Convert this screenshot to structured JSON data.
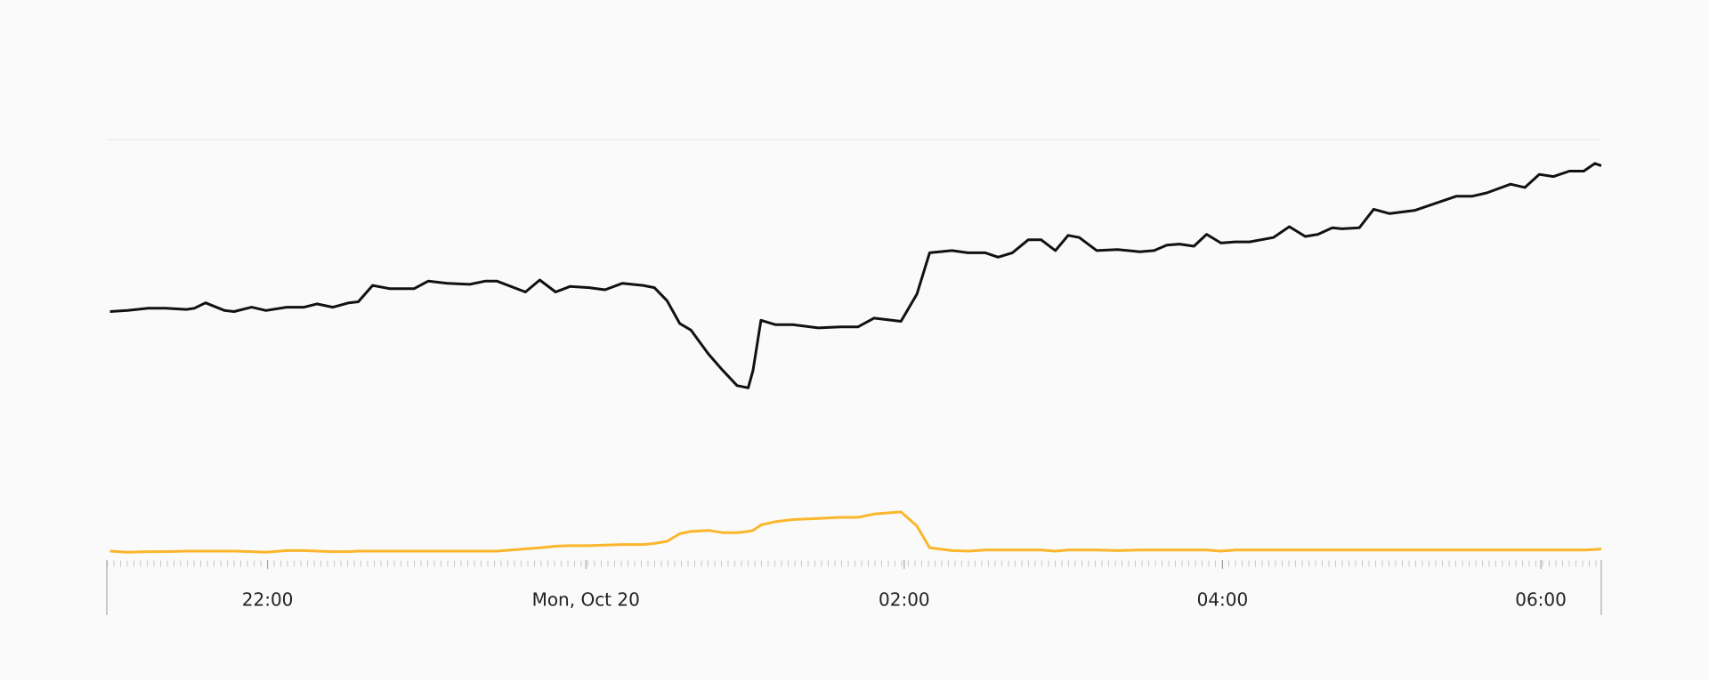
{
  "chart_data": {
    "type": "line",
    "x": [
      -2.99,
      -2.88,
      -2.75,
      -2.64,
      -2.51,
      -2.46,
      -2.39,
      -2.27,
      -2.21,
      -2.1,
      -2.01,
      -1.88,
      -1.77,
      -1.69,
      -1.59,
      -1.49,
      -1.43,
      -1.34,
      -1.23,
      -1.08,
      -0.99,
      -0.87,
      -0.73,
      -0.63,
      -0.56,
      -0.38,
      -0.29,
      -0.19,
      -0.1,
      0.02,
      0.12,
      0.23,
      0.36,
      0.43,
      0.51,
      0.59,
      0.66,
      0.77,
      0.86,
      0.95,
      1.02,
      1.05,
      1.1,
      1.19,
      1.3,
      1.46,
      1.6,
      1.71,
      1.81,
      1.98,
      2.08,
      2.16,
      2.3,
      2.4,
      2.51,
      2.59,
      2.68,
      2.78,
      2.86,
      2.95,
      3.03,
      3.1,
      3.21,
      3.34,
      3.48,
      3.57,
      3.65,
      3.73,
      3.82,
      3.9,
      3.99,
      4.08,
      4.17,
      4.32,
      4.42,
      4.52,
      4.6,
      4.69,
      4.75,
      4.86,
      4.95,
      5.05,
      5.21,
      5.47,
      5.57,
      5.66,
      5.81,
      5.9,
      5.99,
      6.08,
      6.18,
      6.27,
      6.34,
      6.38
    ],
    "series": [
      {
        "color": "#111111",
        "values": [
          229,
          230,
          232,
          232,
          231,
          232,
          237,
          230,
          229,
          233,
          230,
          233,
          233,
          236,
          233,
          237,
          238,
          253,
          250,
          250,
          257,
          255,
          254,
          257,
          257,
          247,
          258,
          247,
          252,
          251,
          249,
          255,
          253,
          251,
          239,
          218,
          212,
          190,
          175,
          161,
          159,
          175,
          221,
          217,
          217,
          214,
          215,
          215,
          223,
          220,
          245,
          283,
          285,
          283,
          283,
          279,
          283,
          295,
          295,
          285,
          299,
          297,
          285,
          286,
          284,
          285,
          290,
          291,
          289,
          300,
          292,
          293,
          293,
          297,
          307,
          298,
          300,
          306,
          305,
          306,
          323,
          319,
          322,
          335,
          335,
          338,
          346,
          343,
          355,
          353,
          358,
          358,
          365,
          363
        ]
      },
      {
        "color": "#fbb62b",
        "values": [
          9,
          8,
          8.5,
          8.5,
          9,
          9,
          9,
          9,
          9,
          8.5,
          8,
          9.5,
          9.5,
          9,
          8.5,
          8.5,
          9,
          9,
          9,
          9,
          9,
          9,
          9,
          9,
          9,
          11,
          12,
          13.5,
          14,
          14,
          14.5,
          15,
          15,
          16,
          18,
          25,
          27,
          28,
          26,
          26,
          27,
          28,
          33,
          36,
          38,
          39,
          40,
          40,
          43,
          45,
          32,
          12,
          9.5,
          9,
          10,
          10,
          10,
          10,
          10,
          9,
          10,
          10,
          10,
          9.5,
          10,
          10,
          10,
          10,
          10,
          10,
          9,
          10,
          10,
          10,
          10,
          10,
          10,
          10,
          10,
          10,
          10,
          10,
          10,
          10,
          10,
          10,
          10,
          10,
          10,
          10,
          10,
          10,
          10.5,
          11
        ]
      }
    ],
    "xlim": [
      -3.01,
      6.38
    ],
    "xticks": [
      {
        "value": -2,
        "label": "22:00"
      },
      {
        "value": 0,
        "label": "Mon, Oct 20"
      },
      {
        "value": 2,
        "label": "02:00"
      },
      {
        "value": 4,
        "label": "04:00"
      },
      {
        "value": 6,
        "label": "06:00"
      }
    ],
    "ylim": [
      0,
      387
    ]
  }
}
